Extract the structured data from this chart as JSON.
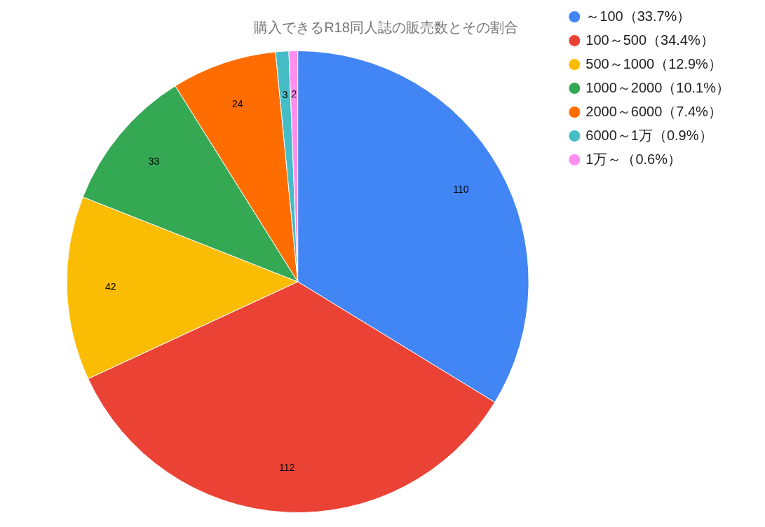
{
  "chart_data": {
    "type": "pie",
    "title": "購入できるR18同人誌の販売数とその割合",
    "categories": [
      "～100（33.7%）",
      "100～500（34.4%）",
      "500～1000（12.9%）",
      "1000～2000（10.1%）",
      "2000～6000（7.4%）",
      "6000～1万（0.9%）",
      "1万～（0.6%）"
    ],
    "values": [
      110,
      112,
      42,
      33,
      24,
      3,
      2
    ],
    "colors": [
      "#4285f4",
      "#ea4335",
      "#fbbc04",
      "#34a853",
      "#ff6d01",
      "#46bdc6",
      "#ff8ef0"
    ],
    "data_labels": true,
    "legend": "right"
  }
}
